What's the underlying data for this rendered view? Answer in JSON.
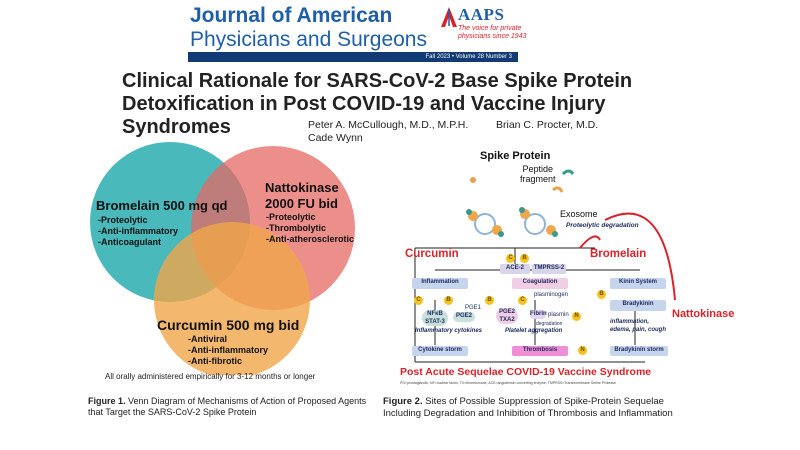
{
  "header": {
    "journal_line1": "Journal of American",
    "journal_line2": "Physicians and Surgeons",
    "logo": "AAPS",
    "logo_tagline": "The voice for private physicians since 1943",
    "issue": "Fall 2023 • Volume 28 Number 3"
  },
  "paper": {
    "title": "Clinical Rationale for SARS-CoV-2 Base Spike Protein Detoxification in Post COVID-19 and Vaccine Injury Syndromes",
    "authors": [
      "Peter A. McCullough, M.D., M.P.H.",
      "Brian C. Procter, M.D.",
      "Cade Wynn"
    ]
  },
  "figure1": {
    "circles": [
      {
        "name": "bromelain",
        "head": "Bromelain 500 mg qd",
        "items": [
          "-Proteolytic",
          "-Anti-inflammatory",
          "-Anticoagulant"
        ],
        "color": "#3fb5b8"
      },
      {
        "name": "nattokinase",
        "head1": "Nattokinase",
        "head2": "2000 FU bid",
        "items": [
          "-Proteolytic",
          "-Thrombolytic",
          "-Anti-atherosclerotic"
        ],
        "color": "#e66a64"
      },
      {
        "name": "curcumin",
        "head": "Curcumin 500 mg bid",
        "items": [
          "-Antiviral",
          "-Anti-inflammatory",
          "-Anti-fibrotic"
        ],
        "color": "#f0a64a"
      }
    ],
    "note": "All orally administered empirically for 3-12 months or longer",
    "caption_label": "Figure 1.",
    "caption_text": "Venn Diagram of Mechanisms of Action of Proposed Agents that Target the SARS-CoV-2 Spike Protein"
  },
  "figure2": {
    "spike_protein": "Spike Protein",
    "peptide": "Peptide",
    "fragment": "fragment",
    "exosome": "Exosome",
    "proteolytic": "Proteolytic degradation",
    "curcumin": "Curcumin",
    "bromelain": "Bromelain",
    "nattokinase": "Nattokinase",
    "ace2": "ACE-2",
    "tmprss2": "TMPRSS-2",
    "inflammation": "Inflammation",
    "coagulation": "Coagulation",
    "kinin": "Kinin System",
    "bradykinin": "Bradykinin",
    "plasminogen": "plasminogen",
    "fibrin": "Fibrin",
    "plasmin": "plasmin",
    "degradation": "degradation",
    "nfkb": "NFκB",
    "stat3": "STAT-3",
    "pge1": "PGE1",
    "pge2_a": "PGE2",
    "pge2_b": "PGE2",
    "txa2": "TXA2",
    "inflam_cyto": "Inflammatory cytokines",
    "platelet": "Platelet aggregation",
    "inflam_edema": "inflammation, edema, pain, cough",
    "cytokine_storm": "Cytokine storm",
    "thrombosis": "Thrombosis",
    "bradykinin_storm": "Bradykinin storm",
    "pasc": "Post Acute Sequelae COVID-19 Vaccine Syndrome",
    "footnote": "PG=prostaglandin, NF=nuclear factor, TX=thromboxane, ACE=angiotensin converting enzyme, TMPRSS=Transmembrane Serine Protease",
    "caption_label": "Figure 2.",
    "caption_text": "Sites of Possible Suppression of Spike-Protein Sequelae Including Degradation and Inhibition of Thrombosis and Inflammation",
    "inhibitor_c": "C",
    "inhibitor_b": "B",
    "inhibitor_n": "N"
  }
}
